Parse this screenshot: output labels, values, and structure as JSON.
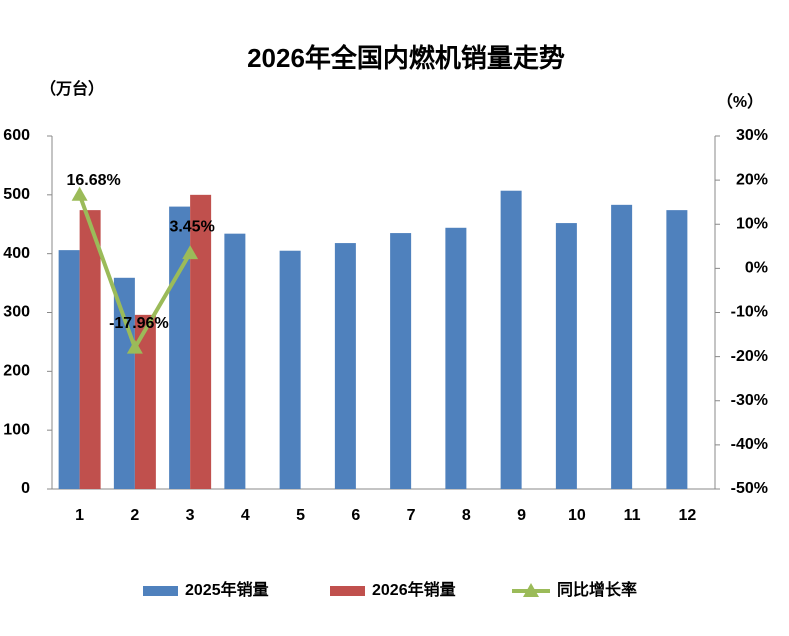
{
  "chart_data": {
    "type": "bar",
    "title": "2026年全国内燃机销量走势",
    "y_label": "（万台）",
    "y2_label": "（%）",
    "categories": [
      "1",
      "2",
      "3",
      "4",
      "5",
      "6",
      "7",
      "8",
      "9",
      "10",
      "11",
      "12"
    ],
    "series": [
      {
        "name": "2025年销量",
        "type": "bar",
        "color": "#4f81bd",
        "values": [
          406,
          359,
          480,
          434,
          405,
          418,
          435,
          444,
          507,
          452,
          483,
          474
        ]
      },
      {
        "name": "2026年销量",
        "type": "bar",
        "color": "#c0504d",
        "values": [
          474,
          296,
          500,
          null,
          null,
          null,
          null,
          null,
          null,
          null,
          null,
          null
        ]
      },
      {
        "name": "同比增长率",
        "type": "line",
        "axis": "y2",
        "color": "#9bbb59",
        "values": [
          16.68,
          -17.96,
          3.45,
          null,
          null,
          null,
          null,
          null,
          null,
          null,
          null,
          null
        ],
        "value_labels": [
          "16.68%",
          "-17.96%",
          "3.45%",
          null,
          null,
          null,
          null,
          null,
          null,
          null,
          null,
          null
        ]
      }
    ],
    "ylim": [
      0,
      600
    ],
    "yticks": [
      0,
      100,
      200,
      300,
      400,
      500,
      600
    ],
    "y2lim": [
      -50,
      30
    ],
    "y2ticks": [
      {
        "value": -50,
        "label": "-50%"
      },
      {
        "value": -40,
        "label": "-40%"
      },
      {
        "value": -30,
        "label": "-30%"
      },
      {
        "value": -20,
        "label": "-20%"
      },
      {
        "value": -10,
        "label": "-10%"
      },
      {
        "value": 0,
        "label": "0%"
      },
      {
        "value": 10,
        "label": "10%"
      },
      {
        "value": 20,
        "label": "20%"
      },
      {
        "value": 30,
        "label": "30%"
      }
    ],
    "legend": "bottom"
  }
}
